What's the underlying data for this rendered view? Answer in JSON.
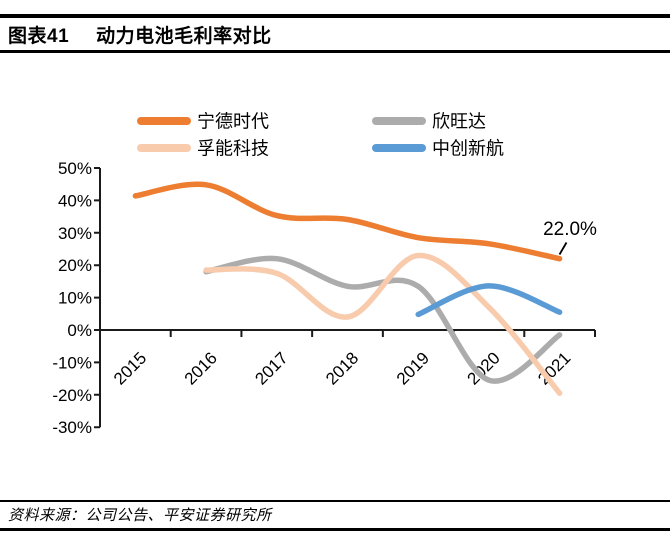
{
  "header": {
    "label": "图表41",
    "title": "动力电池毛利率对比"
  },
  "footer": {
    "source": "资料来源：公司公告、平安证券研究所"
  },
  "chart_data": {
    "type": "line",
    "title": "动力电池毛利率对比",
    "unit": "percent",
    "categories": [
      "2015",
      "2016",
      "2017",
      "2018",
      "2019",
      "2020",
      "2021"
    ],
    "ylim": [
      -30,
      50
    ],
    "ytick_step": 10,
    "ytick_labels": [
      "50%",
      "40%",
      "30%",
      "20%",
      "10%",
      "0%",
      "-10%",
      "-20%",
      "-30%"
    ],
    "grid": "off",
    "legend_position": "top",
    "line_style": "smooth",
    "series": [
      {
        "name": "宁德时代",
        "color": "#ED7D31",
        "start_year": "2015",
        "values": [
          41.4,
          44.8,
          35.3,
          34.1,
          28.5,
          26.6,
          22.0
        ]
      },
      {
        "name": "欣旺达",
        "color": "#ACACAC",
        "start_year": "2016",
        "values": [
          18.0,
          22.0,
          13.5,
          13.5,
          -15.5,
          -1.5
        ]
      },
      {
        "name": "孚能科技",
        "color": "#F8CBAD",
        "start_year": "2016",
        "values": [
          18.5,
          17.5,
          4.0,
          23.0,
          7.0,
          -19.5
        ]
      },
      {
        "name": "中创新航",
        "color": "#5B9BD5",
        "start_year": "2019",
        "values": [
          4.8,
          13.6,
          5.5
        ]
      }
    ],
    "annotation": {
      "text": "22.0%",
      "series": "宁德时代",
      "category": "2021",
      "value": 22.0
    }
  }
}
